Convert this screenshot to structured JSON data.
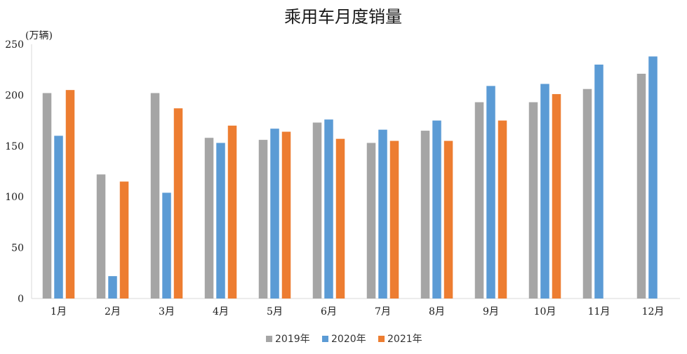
{
  "chart_data": {
    "type": "bar",
    "title": "乘用车月度销量",
    "unit_label": "(万辆)",
    "ylim": [
      0,
      250
    ],
    "yticks": [
      0,
      50,
      100,
      150,
      200,
      250
    ],
    "categories": [
      "1月",
      "2月",
      "3月",
      "4月",
      "5月",
      "6月",
      "7月",
      "8月",
      "9月",
      "10月",
      "11月",
      "12月"
    ],
    "series": [
      {
        "name": "2019年",
        "color": "#A5A5A5",
        "values": [
          202,
          122,
          202,
          158,
          156,
          173,
          153,
          165,
          193,
          193,
          206,
          221
        ]
      },
      {
        "name": "2020年",
        "color": "#5B9BD5",
        "values": [
          160,
          22,
          104,
          153,
          167,
          176,
          166,
          175,
          209,
          211,
          230,
          238
        ]
      },
      {
        "name": "2021年",
        "color": "#ED7D31",
        "values": [
          205,
          115,
          187,
          170,
          164,
          157,
          155,
          155,
          175,
          201,
          null,
          null
        ]
      }
    ],
    "legend_position": "bottom",
    "grid": false
  }
}
